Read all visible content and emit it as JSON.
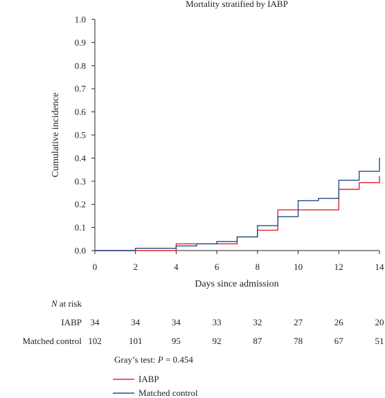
{
  "chart_data": {
    "type": "line",
    "title": "Mortality stratified by IABP",
    "xlabel": "Days since admission",
    "ylabel": "Cumulative incidence",
    "xlim": [
      0,
      14
    ],
    "ylim": [
      0,
      1.0
    ],
    "x_ticks": [
      0,
      2,
      4,
      6,
      8,
      10,
      12,
      14
    ],
    "y_ticks": [
      "0.0",
      "0.1",
      "0.2",
      "0.3",
      "0.4",
      "0.5",
      "0.6",
      "0.7",
      "0.8",
      "0.9",
      "1.0"
    ],
    "grid": false,
    "step": true,
    "series": [
      {
        "name": "IABP",
        "color": "#e8212a",
        "x": [
          0,
          4,
          5,
          7,
          8,
          9,
          12,
          13,
          14
        ],
        "y": [
          0.0,
          0.029,
          0.029,
          0.059,
          0.088,
          0.176,
          0.265,
          0.294,
          0.323
        ]
      },
      {
        "name": "Matched control",
        "color": "#1d4e8c",
        "x": [
          0,
          2,
          4,
          5,
          6,
          7,
          8,
          9,
          10,
          11,
          12,
          13,
          14
        ],
        "y": [
          0.0,
          0.01,
          0.02,
          0.029,
          0.039,
          0.059,
          0.108,
          0.147,
          0.216,
          0.226,
          0.304,
          0.343,
          0.402
        ]
      }
    ],
    "risk_table": {
      "heading_italic": "N",
      "heading_rest": " at risk",
      "rows": [
        {
          "label": "IABP",
          "values": [
            "34",
            "34",
            "34",
            "33",
            "32",
            "27",
            "26",
            "20"
          ]
        },
        {
          "label": "Matched control",
          "values": [
            "102",
            "101",
            "95",
            "92",
            "87",
            "78",
            "67",
            "51"
          ]
        }
      ]
    },
    "annotation": {
      "prefix": "Gray’s test: ",
      "p_label": "P",
      "rest": " = 0.454"
    },
    "legend": {
      "position": "bottom-left"
    }
  }
}
